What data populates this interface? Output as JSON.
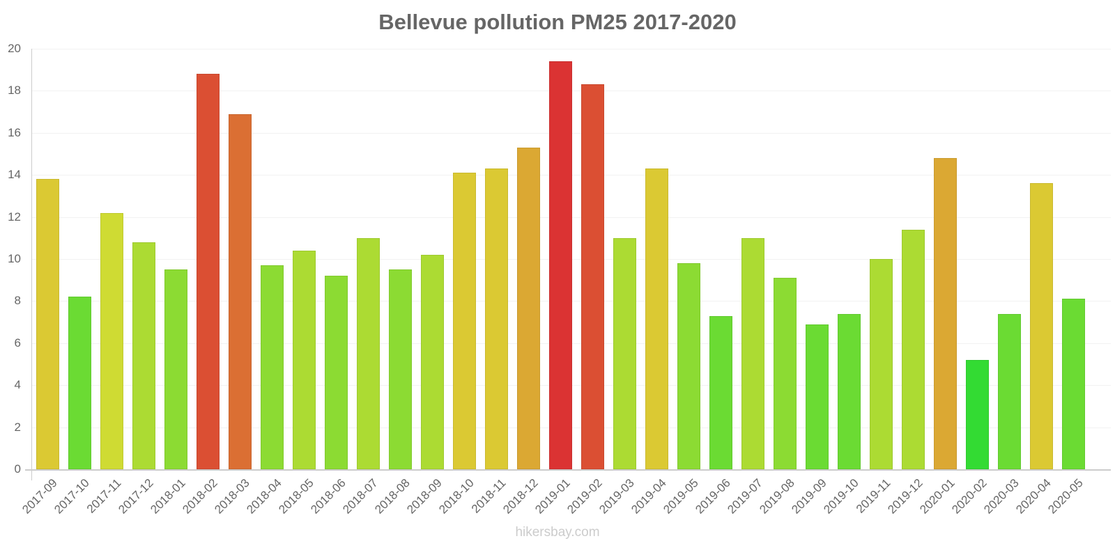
{
  "chart_data": {
    "type": "bar",
    "title": "Bellevue pollution PM25 2017-2020",
    "xlabel": "",
    "ylabel": "",
    "ylim": [
      0,
      20
    ],
    "yticks": [
      0,
      2,
      4,
      6,
      8,
      10,
      12,
      14,
      16,
      18,
      20
    ],
    "grid": true,
    "categories": [
      "2017-09",
      "2017-10",
      "2017-11",
      "2017-12",
      "2018-01",
      "2018-02",
      "2018-03",
      "2018-04",
      "2018-05",
      "2018-06",
      "2018-07",
      "2018-08",
      "2018-09",
      "2018-10",
      "2018-11",
      "2018-12",
      "2019-01",
      "2019-02",
      "2019-03",
      "2019-04",
      "2019-05",
      "2019-06",
      "2019-07",
      "2019-08",
      "2019-09",
      "2019-10",
      "2019-11",
      "2019-12",
      "2020-01",
      "2020-02",
      "2020-03",
      "2020-04",
      "2020-05"
    ],
    "values": [
      13.8,
      8.2,
      12.2,
      10.8,
      9.5,
      18.8,
      16.9,
      9.7,
      10.4,
      9.2,
      11.0,
      9.5,
      10.2,
      14.1,
      14.3,
      15.3,
      19.4,
      18.3,
      11.0,
      14.3,
      9.8,
      7.3,
      11.0,
      9.1,
      6.9,
      7.4,
      10.0,
      11.4,
      14.8,
      5.2,
      7.4,
      13.6,
      8.1
    ],
    "colors": [
      "#dbc933",
      "#6bdb33",
      "#cfdb33",
      "#acdb33",
      "#8cdb33",
      "#db4f33",
      "#db6f33",
      "#8cdb33",
      "#acdb33",
      "#8cdb33",
      "#acdb33",
      "#8cdb33",
      "#acdb33",
      "#dbc933",
      "#dbc933",
      "#dba833",
      "#db3333",
      "#db4f33",
      "#acdb33",
      "#dbc933",
      "#8cdb33",
      "#6bdb33",
      "#acdb33",
      "#8cdb33",
      "#6bdb33",
      "#6bdb33",
      "#acdb33",
      "#acdb33",
      "#dba833",
      "#33db33",
      "#6bdb33",
      "#dbc933",
      "#6bdb33"
    ]
  },
  "footer": "hikersbay.com"
}
